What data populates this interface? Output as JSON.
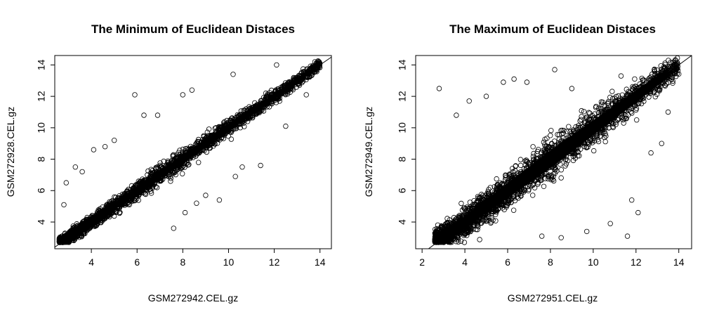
{
  "chart_data": [
    {
      "type": "scatter",
      "title": "The Minimum of Euclidean Distaces",
      "xlabel": "GSM272942.CEL.gz",
      "ylabel": "GSM272928.CEL.gz",
      "xlim": [
        2.4,
        14.5
      ],
      "ylim": [
        2.3,
        14.6
      ],
      "xticks": [
        4,
        6,
        8,
        10,
        12,
        14
      ],
      "yticks": [
        4,
        6,
        8,
        10,
        12,
        14
      ],
      "reference_line": "y = x",
      "grid": false,
      "marker": "open-circle",
      "spread": 0.55,
      "outliers": [
        [
          2.8,
          5.1
        ],
        [
          2.9,
          6.5
        ],
        [
          3.3,
          7.5
        ],
        [
          3.6,
          7.2
        ],
        [
          4.1,
          8.6
        ],
        [
          4.6,
          8.8
        ],
        [
          5.0,
          9.2
        ],
        [
          5.9,
          12.1
        ],
        [
          6.3,
          10.8
        ],
        [
          6.9,
          10.8
        ],
        [
          8.0,
          12.1
        ],
        [
          8.4,
          12.4
        ],
        [
          10.2,
          13.4
        ],
        [
          12.1,
          14.0
        ],
        [
          7.6,
          3.6
        ],
        [
          8.1,
          4.6
        ],
        [
          8.6,
          5.2
        ],
        [
          9.0,
          5.7
        ],
        [
          9.6,
          5.4
        ],
        [
          10.3,
          6.9
        ],
        [
          10.6,
          7.5
        ],
        [
          11.4,
          7.6
        ],
        [
          12.5,
          10.1
        ],
        [
          13.4,
          12.1
        ]
      ]
    },
    {
      "type": "scatter",
      "title": "The Maximum of Euclidean Distaces",
      "xlabel": "GSM272951.CEL.gz",
      "ylabel": "GSM272949.CEL.gz",
      "xlim": [
        1.7,
        14.6
      ],
      "ylim": [
        2.3,
        14.6
      ],
      "xticks": [
        2,
        4,
        6,
        8,
        10,
        12,
        14
      ],
      "yticks": [
        4,
        6,
        8,
        10,
        12,
        14
      ],
      "reference_line": "y = x",
      "grid": false,
      "marker": "open-circle",
      "spread": 1.15,
      "outliers": [
        [
          2.8,
          12.5
        ],
        [
          3.6,
          10.8
        ],
        [
          4.2,
          11.7
        ],
        [
          5.0,
          12.0
        ],
        [
          5.8,
          12.9
        ],
        [
          6.3,
          13.1
        ],
        [
          6.9,
          12.9
        ],
        [
          8.2,
          13.7
        ],
        [
          9.0,
          12.5
        ],
        [
          10.4,
          11.5
        ],
        [
          11.3,
          13.3
        ],
        [
          12.4,
          12.6
        ],
        [
          7.6,
          3.1
        ],
        [
          8.5,
          3.0
        ],
        [
          9.7,
          3.4
        ],
        [
          10.8,
          3.9
        ],
        [
          11.6,
          3.1
        ],
        [
          12.1,
          4.6
        ],
        [
          11.8,
          5.4
        ],
        [
          12.7,
          8.4
        ],
        [
          13.2,
          9.0
        ],
        [
          13.5,
          11.0
        ]
      ]
    }
  ]
}
